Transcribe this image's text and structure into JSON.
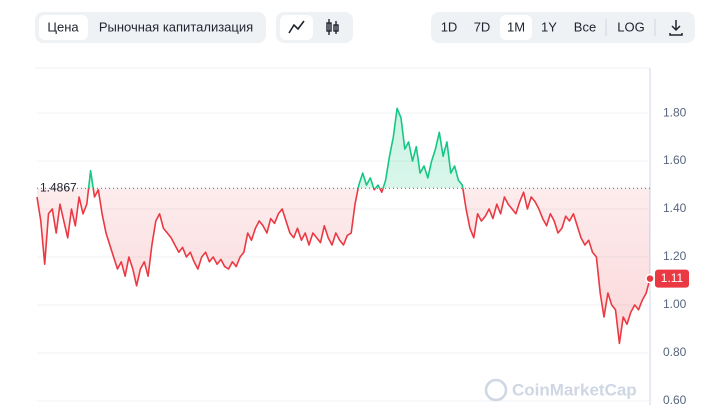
{
  "toolbar": {
    "metric_tabs": [
      "Цена",
      "Рыночная капитализация"
    ],
    "ranges": [
      "1D",
      "7D",
      "1M",
      "1Y",
      "Все"
    ],
    "log": "LOG"
  },
  "chart_data": {
    "type": "line",
    "watermark": "CoinMarketCap",
    "values": [
      1.45,
      1.35,
      1.17,
      1.38,
      1.4,
      1.3,
      1.42,
      1.35,
      1.28,
      1.4,
      1.33,
      1.45,
      1.38,
      1.42,
      1.56,
      1.45,
      1.48,
      1.38,
      1.3,
      1.25,
      1.2,
      1.15,
      1.18,
      1.12,
      1.2,
      1.15,
      1.08,
      1.15,
      1.18,
      1.12,
      1.25,
      1.35,
      1.38,
      1.32,
      1.3,
      1.28,
      1.25,
      1.22,
      1.24,
      1.2,
      1.22,
      1.18,
      1.15,
      1.2,
      1.22,
      1.18,
      1.2,
      1.17,
      1.19,
      1.16,
      1.15,
      1.18,
      1.16,
      1.2,
      1.22,
      1.3,
      1.27,
      1.32,
      1.35,
      1.33,
      1.3,
      1.36,
      1.34,
      1.38,
      1.4,
      1.35,
      1.3,
      1.28,
      1.32,
      1.27,
      1.3,
      1.25,
      1.3,
      1.28,
      1.26,
      1.33,
      1.28,
      1.25,
      1.3,
      1.27,
      1.25,
      1.29,
      1.3,
      1.42,
      1.5,
      1.55,
      1.5,
      1.53,
      1.48,
      1.5,
      1.47,
      1.52,
      1.62,
      1.7,
      1.82,
      1.78,
      1.65,
      1.68,
      1.6,
      1.66,
      1.55,
      1.58,
      1.53,
      1.6,
      1.65,
      1.72,
      1.62,
      1.68,
      1.55,
      1.58,
      1.52,
      1.5,
      1.4,
      1.32,
      1.28,
      1.38,
      1.35,
      1.37,
      1.4,
      1.36,
      1.42,
      1.38,
      1.45,
      1.42,
      1.4,
      1.38,
      1.43,
      1.47,
      1.4,
      1.45,
      1.43,
      1.4,
      1.36,
      1.33,
      1.38,
      1.35,
      1.3,
      1.32,
      1.37,
      1.35,
      1.38,
      1.33,
      1.28,
      1.25,
      1.27,
      1.22,
      1.2,
      1.05,
      0.95,
      1.05,
      1.0,
      0.98,
      0.84,
      0.95,
      0.92,
      0.97,
      1.0,
      0.98,
      1.02,
      1.05,
      1.11
    ],
    "up_color": "#16c784",
    "down_color": "#ea3943",
    "reference_line": 1.4867,
    "last_price": 1.11,
    "ylim": [
      0.583,
      1.988
    ],
    "yticks": [
      {
        "value": 0.6,
        "label": "0.60"
      },
      {
        "value": 0.8,
        "label": "0.80"
      },
      {
        "value": 1.0,
        "label": "1.00"
      },
      {
        "value": 1.2,
        "label": "1.20"
      },
      {
        "value": 1.4,
        "label": "1.40"
      },
      {
        "value": 1.6,
        "label": "1.60"
      },
      {
        "value": 1.8,
        "label": "1.80"
      }
    ],
    "grid": true
  }
}
